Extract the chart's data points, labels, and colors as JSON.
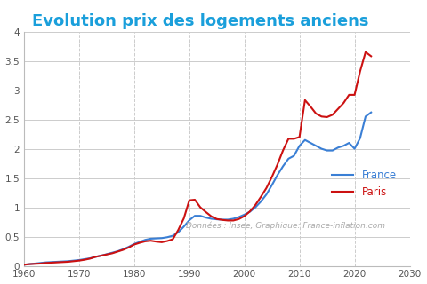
{
  "title": "Evolution prix des logements anciens",
  "title_color": "#1a9fdb",
  "title_fontsize": 13,
  "background_color": "#ffffff",
  "xlim": [
    1960,
    2030
  ],
  "ylim": [
    0,
    4
  ],
  "xticks": [
    1960,
    1970,
    1980,
    1990,
    2000,
    2010,
    2020,
    2030
  ],
  "yticks": [
    0,
    0.5,
    1.0,
    1.5,
    2.0,
    2.5,
    3.0,
    3.5,
    4.0
  ],
  "grid_color": "#cccccc",
  "annotation": "Données : Insee, Graphique: France-inflation.com",
  "annotation_color": "#aaaaaa",
  "france_color": "#3a7fd5",
  "paris_color": "#cc1111",
  "legend_france": "France",
  "legend_paris": "Paris",
  "france_x": [
    1960,
    1961,
    1962,
    1963,
    1964,
    1965,
    1966,
    1967,
    1968,
    1969,
    1970,
    1971,
    1972,
    1973,
    1974,
    1975,
    1976,
    1977,
    1978,
    1979,
    1980,
    1981,
    1982,
    1983,
    1984,
    1985,
    1986,
    1987,
    1988,
    1989,
    1990,
    1991,
    1992,
    1993,
    1994,
    1995,
    1996,
    1997,
    1998,
    1999,
    2000,
    2001,
    2002,
    2003,
    2004,
    2005,
    2006,
    2007,
    2008,
    2009,
    2010,
    2011,
    2012,
    2013,
    2014,
    2015,
    2016,
    2017,
    2018,
    2019,
    2020,
    2021,
    2022,
    2023
  ],
  "france_y": [
    0.02,
    0.03,
    0.04,
    0.05,
    0.06,
    0.065,
    0.07,
    0.075,
    0.08,
    0.09,
    0.1,
    0.115,
    0.13,
    0.155,
    0.175,
    0.2,
    0.225,
    0.25,
    0.285,
    0.325,
    0.375,
    0.41,
    0.445,
    0.465,
    0.47,
    0.475,
    0.49,
    0.515,
    0.575,
    0.67,
    0.78,
    0.855,
    0.855,
    0.825,
    0.805,
    0.795,
    0.79,
    0.79,
    0.805,
    0.835,
    0.875,
    0.925,
    1.0,
    1.1,
    1.22,
    1.38,
    1.55,
    1.7,
    1.83,
    1.88,
    2.05,
    2.15,
    2.1,
    2.05,
    2.0,
    1.97,
    1.97,
    2.02,
    2.05,
    2.1,
    2.0,
    2.18,
    2.55,
    2.62
  ],
  "paris_x": [
    1960,
    1961,
    1962,
    1963,
    1964,
    1965,
    1966,
    1967,
    1968,
    1969,
    1970,
    1971,
    1972,
    1973,
    1974,
    1975,
    1976,
    1977,
    1978,
    1979,
    1980,
    1981,
    1982,
    1983,
    1984,
    1985,
    1986,
    1987,
    1988,
    1989,
    1990,
    1991,
    1992,
    1993,
    1994,
    1995,
    1996,
    1997,
    1998,
    1999,
    2000,
    2001,
    2002,
    2003,
    2004,
    2005,
    2006,
    2007,
    2008,
    2009,
    2010,
    2011,
    2012,
    2013,
    2014,
    2015,
    2016,
    2017,
    2018,
    2019,
    2020,
    2021,
    2022,
    2023
  ],
  "paris_y": [
    0.02,
    0.03,
    0.035,
    0.04,
    0.05,
    0.055,
    0.06,
    0.065,
    0.07,
    0.08,
    0.09,
    0.105,
    0.125,
    0.155,
    0.175,
    0.195,
    0.215,
    0.245,
    0.275,
    0.315,
    0.365,
    0.395,
    0.42,
    0.43,
    0.415,
    0.405,
    0.425,
    0.455,
    0.615,
    0.81,
    1.12,
    1.13,
    1.0,
    0.92,
    0.845,
    0.8,
    0.785,
    0.775,
    0.775,
    0.8,
    0.85,
    0.93,
    1.04,
    1.18,
    1.33,
    1.52,
    1.73,
    1.97,
    2.17,
    2.17,
    2.2,
    2.83,
    2.72,
    2.6,
    2.55,
    2.54,
    2.58,
    2.68,
    2.78,
    2.92,
    2.92,
    3.32,
    3.65,
    3.58
  ]
}
